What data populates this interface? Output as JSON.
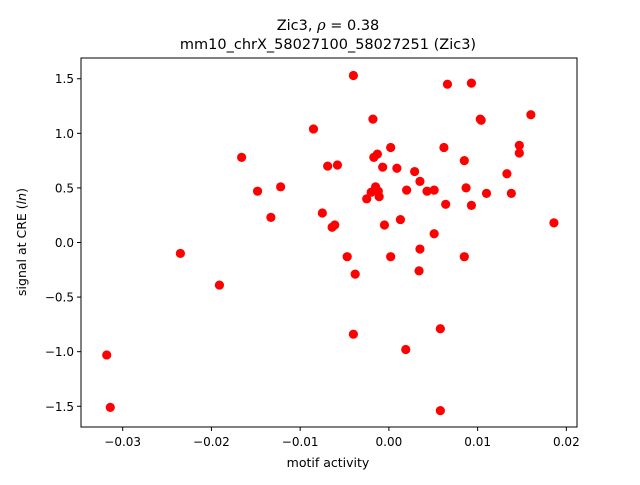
{
  "chart_data": {
    "type": "scatter",
    "title_line1": "Zic3, ",
    "title_rho_symbol": "ρ",
    "title_rho_value": " = 0.38",
    "title_line2": "mm10_chrX_58027100_58027251 (Zic3)",
    "xlabel": "motif activity",
    "ylabel_prefix": "signal at CRE (",
    "ylabel_italic": "ln",
    "ylabel_suffix": ")",
    "xlim": [
      -0.0347,
      0.0212
    ],
    "ylim": [
      -1.69,
      1.69
    ],
    "x_ticks": [
      {
        "value": -0.03,
        "label": "−0.03"
      },
      {
        "value": -0.02,
        "label": "−0.02"
      },
      {
        "value": -0.01,
        "label": "−0.01"
      },
      {
        "value": 0.0,
        "label": "0.00"
      },
      {
        "value": 0.01,
        "label": "0.01"
      },
      {
        "value": 0.02,
        "label": "0.02"
      }
    ],
    "y_ticks": [
      {
        "value": -1.5,
        "label": "−1.5"
      },
      {
        "value": -1.0,
        "label": "−1.0"
      },
      {
        "value": -0.5,
        "label": "−0.5"
      },
      {
        "value": 0.0,
        "label": "0.0"
      },
      {
        "value": 0.5,
        "label": "0.5"
      },
      {
        "value": 1.0,
        "label": "1.0"
      },
      {
        "value": 1.5,
        "label": "1.5"
      }
    ],
    "grid": false,
    "marker_color": "#ff0000",
    "points": [
      {
        "x": -0.0318,
        "y": -1.03
      },
      {
        "x": -0.0314,
        "y": -1.51
      },
      {
        "x": -0.0235,
        "y": -0.1
      },
      {
        "x": -0.0191,
        "y": -0.39
      },
      {
        "x": -0.0166,
        "y": 0.78
      },
      {
        "x": -0.0148,
        "y": 0.47
      },
      {
        "x": -0.0133,
        "y": 0.23
      },
      {
        "x": -0.0122,
        "y": 0.51
      },
      {
        "x": -0.0085,
        "y": 1.04
      },
      {
        "x": -0.0075,
        "y": 0.27
      },
      {
        "x": -0.0069,
        "y": 0.7
      },
      {
        "x": -0.0064,
        "y": 0.14
      },
      {
        "x": -0.0061,
        "y": 0.16
      },
      {
        "x": -0.0058,
        "y": 0.71
      },
      {
        "x": -0.0047,
        "y": -0.13
      },
      {
        "x": -0.004,
        "y": 1.53
      },
      {
        "x": -0.004,
        "y": -0.84
      },
      {
        "x": -0.0038,
        "y": -0.29
      },
      {
        "x": -0.0025,
        "y": 0.4
      },
      {
        "x": -0.002,
        "y": 0.46
      },
      {
        "x": -0.0018,
        "y": 1.13
      },
      {
        "x": -0.0017,
        "y": 0.78
      },
      {
        "x": -0.0015,
        "y": 0.51
      },
      {
        "x": -0.0013,
        "y": 0.81
      },
      {
        "x": -0.0012,
        "y": 0.47
      },
      {
        "x": -0.0011,
        "y": 0.42
      },
      {
        "x": -0.0007,
        "y": 0.69
      },
      {
        "x": -0.0005,
        "y": 0.16
      },
      {
        "x": 0.0002,
        "y": 0.87
      },
      {
        "x": 0.0002,
        "y": -0.13
      },
      {
        "x": 0.0009,
        "y": 0.68
      },
      {
        "x": 0.0013,
        "y": 0.21
      },
      {
        "x": 0.0019,
        "y": -0.98
      },
      {
        "x": 0.002,
        "y": 0.48
      },
      {
        "x": 0.0029,
        "y": 0.65
      },
      {
        "x": 0.0034,
        "y": -0.26
      },
      {
        "x": 0.0035,
        "y": 0.56
      },
      {
        "x": 0.0035,
        "y": -0.06
      },
      {
        "x": 0.0043,
        "y": 0.47
      },
      {
        "x": 0.0051,
        "y": 0.48
      },
      {
        "x": 0.0051,
        "y": 0.08
      },
      {
        "x": 0.0058,
        "y": -0.79
      },
      {
        "x": 0.0058,
        "y": -1.54
      },
      {
        "x": 0.0062,
        "y": 0.87
      },
      {
        "x": 0.0064,
        "y": 0.35
      },
      {
        "x": 0.0066,
        "y": 1.45
      },
      {
        "x": 0.0085,
        "y": -0.13
      },
      {
        "x": 0.0085,
        "y": 0.75
      },
      {
        "x": 0.0087,
        "y": 0.5
      },
      {
        "x": 0.0093,
        "y": 1.46
      },
      {
        "x": 0.0093,
        "y": 0.34
      },
      {
        "x": 0.0103,
        "y": 1.13
      },
      {
        "x": 0.0104,
        "y": 1.12
      },
      {
        "x": 0.011,
        "y": 0.45
      },
      {
        "x": 0.0133,
        "y": 0.63
      },
      {
        "x": 0.0138,
        "y": 0.45
      },
      {
        "x": 0.0147,
        "y": 0.89
      },
      {
        "x": 0.0147,
        "y": 0.82
      },
      {
        "x": 0.016,
        "y": 1.17
      },
      {
        "x": 0.0186,
        "y": 0.18
      }
    ]
  }
}
